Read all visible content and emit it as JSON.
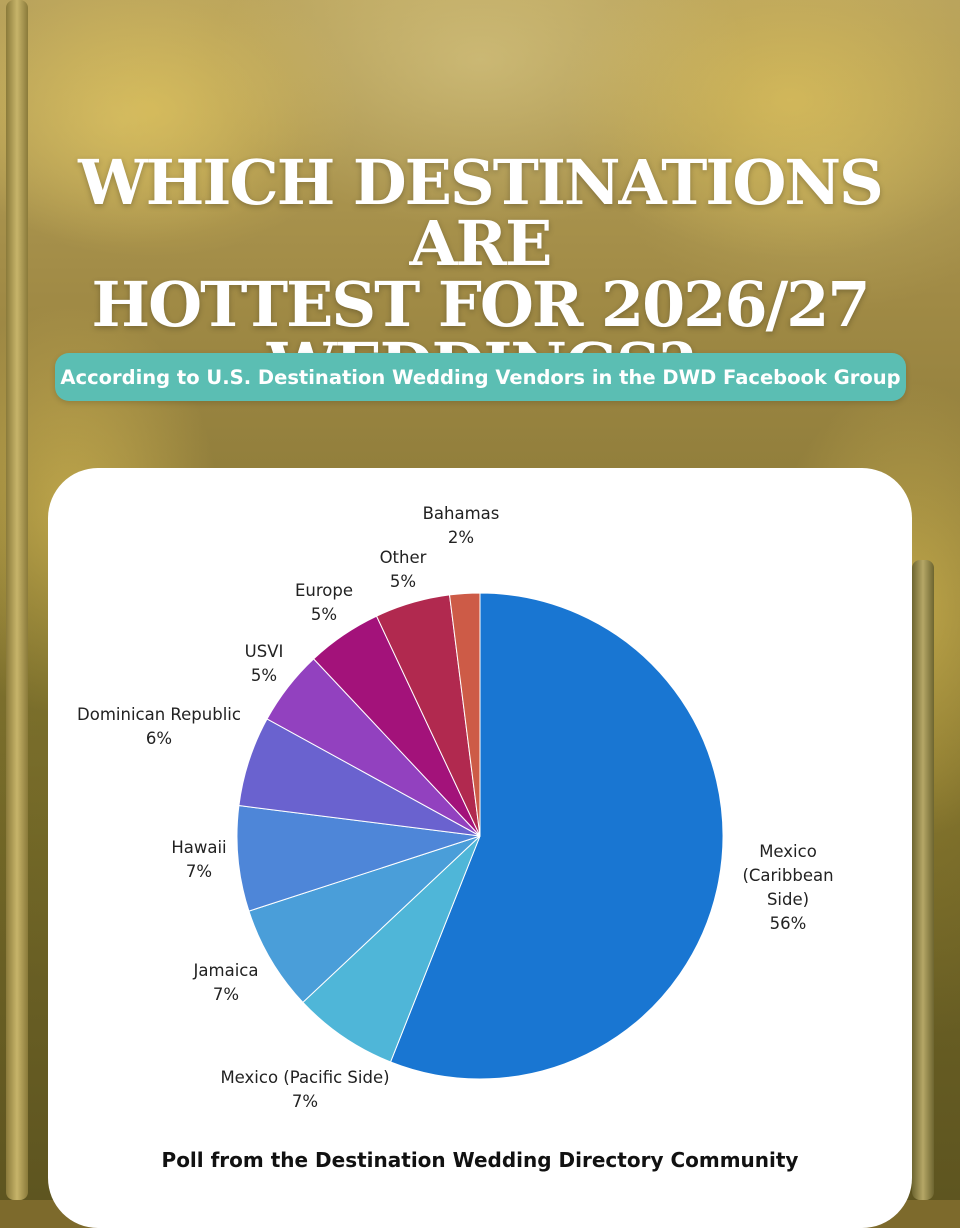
{
  "title_lines": [
    "WHICH DESTINATIONS ARE",
    "HOTTEST FOR 2026/27",
    "WEDDINGS?"
  ],
  "subtitle": "According to U.S. Destination Wedding Vendors in the DWD Facebook Group",
  "footer": "Poll from the Destination Wedding Directory Community",
  "chart_data": {
    "type": "pie",
    "title": "WHICH DESTINATIONS ARE HOTTEST FOR 2026/27 WEDDINGS?",
    "slices": [
      {
        "label": [
          "Mexico",
          "(Caribbean",
          "Side)"
        ],
        "name": "Mexico (Caribbean Side)",
        "value": 56,
        "pct": "56%",
        "color": "#1976d2"
      },
      {
        "label": [
          "Mexico (Pacific Side)"
        ],
        "name": "Mexico (Pacific Side)",
        "value": 7,
        "pct": "7%",
        "color": "#4fb6d8"
      },
      {
        "label": [
          "Jamaica"
        ],
        "name": "Jamaica",
        "value": 7,
        "pct": "7%",
        "color": "#4a9ed9"
      },
      {
        "label": [
          "Hawaii"
        ],
        "name": "Hawaii",
        "value": 7,
        "pct": "7%",
        "color": "#4e86d8"
      },
      {
        "label": [
          "Dominican Republic"
        ],
        "name": "Dominican Republic",
        "value": 6,
        "pct": "6%",
        "color": "#6a62cf"
      },
      {
        "label": [
          "USVI"
        ],
        "name": "USVI",
        "value": 5,
        "pct": "5%",
        "color": "#9241bf"
      },
      {
        "label": [
          "Europe"
        ],
        "name": "Europe",
        "value": 5,
        "pct": "5%",
        "color": "#a3127a"
      },
      {
        "label": [
          "Other"
        ],
        "name": "Other",
        "value": 5,
        "pct": "5%",
        "color": "#b1294f"
      },
      {
        "label": [
          "Bahamas"
        ],
        "name": "Bahamas",
        "value": 2,
        "pct": "2%",
        "color": "#cd5b47"
      }
    ]
  }
}
